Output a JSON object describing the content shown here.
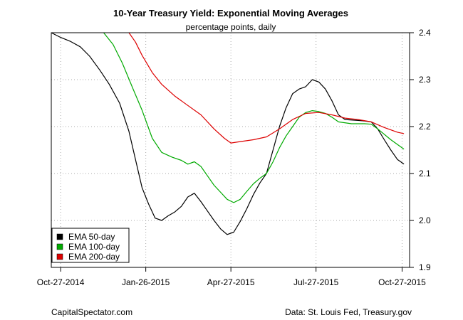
{
  "chart_data": {
    "type": "line",
    "title": "10-Year Treasury Yield: Exponential Moving Averages",
    "subtitle": "percentage points, daily",
    "x_ticks": [
      "Oct-27-2014",
      "Jan-26-2015",
      "Apr-27-2015",
      "Jul-27-2015",
      "Oct-27-2015"
    ],
    "xlim": [
      "2014-10-17",
      "2015-11-04"
    ],
    "ylim": [
      1.9,
      2.4
    ],
    "y_ticks": [
      1.9,
      2.0,
      2.1,
      2.2,
      2.3,
      2.4
    ],
    "y_axis_side": "right",
    "grid": true,
    "legend_position": "bottom-left",
    "series": [
      {
        "name": "EMA 50-day",
        "color": "#000000",
        "points": [
          [
            "2014-10-17",
            2.4
          ],
          [
            "2014-10-27",
            2.39
          ],
          [
            "2014-11-06",
            2.382
          ],
          [
            "2014-11-17",
            2.37
          ],
          [
            "2014-11-27",
            2.35
          ],
          [
            "2014-12-08",
            2.32
          ],
          [
            "2014-12-18",
            2.29
          ],
          [
            "2014-12-29",
            2.25
          ],
          [
            "2015-01-08",
            2.19
          ],
          [
            "2015-01-15",
            2.13
          ],
          [
            "2015-01-22",
            2.07
          ],
          [
            "2015-01-29",
            2.035
          ],
          [
            "2015-02-05",
            2.005
          ],
          [
            "2015-02-12",
            2.0
          ],
          [
            "2015-02-19",
            2.01
          ],
          [
            "2015-02-26",
            2.018
          ],
          [
            "2015-03-05",
            2.03
          ],
          [
            "2015-03-12",
            2.05
          ],
          [
            "2015-03-19",
            2.058
          ],
          [
            "2015-03-26",
            2.04
          ],
          [
            "2015-04-02",
            2.02
          ],
          [
            "2015-04-09",
            2.0
          ],
          [
            "2015-04-16",
            1.982
          ],
          [
            "2015-04-23",
            1.97
          ],
          [
            "2015-04-30",
            1.975
          ],
          [
            "2015-05-07",
            1.998
          ],
          [
            "2015-05-14",
            2.025
          ],
          [
            "2015-05-21",
            2.055
          ],
          [
            "2015-05-28",
            2.08
          ],
          [
            "2015-06-04",
            2.1
          ],
          [
            "2015-06-11",
            2.15
          ],
          [
            "2015-06-18",
            2.2
          ],
          [
            "2015-06-25",
            2.24
          ],
          [
            "2015-07-02",
            2.27
          ],
          [
            "2015-07-09",
            2.28
          ],
          [
            "2015-07-16",
            2.285
          ],
          [
            "2015-07-23",
            2.3
          ],
          [
            "2015-07-30",
            2.295
          ],
          [
            "2015-08-06",
            2.28
          ],
          [
            "2015-08-13",
            2.255
          ],
          [
            "2015-08-20",
            2.225
          ],
          [
            "2015-08-27",
            2.215
          ],
          [
            "2015-09-10",
            2.213
          ],
          [
            "2015-09-17",
            2.212
          ],
          [
            "2015-09-24",
            2.21
          ],
          [
            "2015-10-01",
            2.195
          ],
          [
            "2015-10-08",
            2.172
          ],
          [
            "2015-10-15",
            2.15
          ],
          [
            "2015-10-22",
            2.13
          ],
          [
            "2015-10-29",
            2.12
          ]
        ]
      },
      {
        "name": "EMA 100-day",
        "color": "#00aa00",
        "points": [
          [
            "2014-12-12",
            2.4
          ],
          [
            "2014-12-22",
            2.375
          ],
          [
            "2015-01-01",
            2.335
          ],
          [
            "2015-01-12",
            2.282
          ],
          [
            "2015-01-22",
            2.235
          ],
          [
            "2015-02-02",
            2.175
          ],
          [
            "2015-02-12",
            2.145
          ],
          [
            "2015-02-23",
            2.135
          ],
          [
            "2015-03-05",
            2.128
          ],
          [
            "2015-03-12",
            2.12
          ],
          [
            "2015-03-19",
            2.125
          ],
          [
            "2015-03-26",
            2.115
          ],
          [
            "2015-04-02",
            2.095
          ],
          [
            "2015-04-09",
            2.075
          ],
          [
            "2015-04-16",
            2.06
          ],
          [
            "2015-04-23",
            2.045
          ],
          [
            "2015-04-30",
            2.038
          ],
          [
            "2015-05-07",
            2.045
          ],
          [
            "2015-05-14",
            2.062
          ],
          [
            "2015-05-21",
            2.078
          ],
          [
            "2015-05-28",
            2.09
          ],
          [
            "2015-06-04",
            2.1
          ],
          [
            "2015-06-11",
            2.125
          ],
          [
            "2015-06-18",
            2.155
          ],
          [
            "2015-06-25",
            2.18
          ],
          [
            "2015-07-02",
            2.2
          ],
          [
            "2015-07-09",
            2.22
          ],
          [
            "2015-07-16",
            2.23
          ],
          [
            "2015-07-23",
            2.234
          ],
          [
            "2015-07-30",
            2.232
          ],
          [
            "2015-08-06",
            2.228
          ],
          [
            "2015-08-13",
            2.22
          ],
          [
            "2015-08-20",
            2.21
          ],
          [
            "2015-09-03",
            2.206
          ],
          [
            "2015-09-17",
            2.206
          ],
          [
            "2015-09-24",
            2.205
          ],
          [
            "2015-10-01",
            2.195
          ],
          [
            "2015-10-15",
            2.172
          ],
          [
            "2015-10-29",
            2.152
          ]
        ]
      },
      {
        "name": "EMA 200-day",
        "color": "#dd0000",
        "points": [
          [
            "2015-01-08",
            2.4
          ],
          [
            "2015-01-15",
            2.38
          ],
          [
            "2015-01-22",
            2.352
          ],
          [
            "2015-02-02",
            2.315
          ],
          [
            "2015-02-12",
            2.29
          ],
          [
            "2015-02-26",
            2.265
          ],
          [
            "2015-03-12",
            2.245
          ],
          [
            "2015-03-26",
            2.225
          ],
          [
            "2015-04-09",
            2.195
          ],
          [
            "2015-04-20",
            2.175
          ],
          [
            "2015-04-27",
            2.165
          ],
          [
            "2015-05-07",
            2.168
          ],
          [
            "2015-05-21",
            2.172
          ],
          [
            "2015-06-04",
            2.178
          ],
          [
            "2015-06-18",
            2.195
          ],
          [
            "2015-07-02",
            2.215
          ],
          [
            "2015-07-16",
            2.228
          ],
          [
            "2015-07-30",
            2.23
          ],
          [
            "2015-08-13",
            2.225
          ],
          [
            "2015-08-27",
            2.218
          ],
          [
            "2015-09-10",
            2.215
          ],
          [
            "2015-09-24",
            2.21
          ],
          [
            "2015-10-08",
            2.198
          ],
          [
            "2015-10-22",
            2.188
          ],
          [
            "2015-10-29",
            2.185
          ]
        ]
      }
    ]
  },
  "footer": {
    "left": "CapitalSpectator.com",
    "right": "Data: St. Louis Fed, Treasury.gov"
  }
}
